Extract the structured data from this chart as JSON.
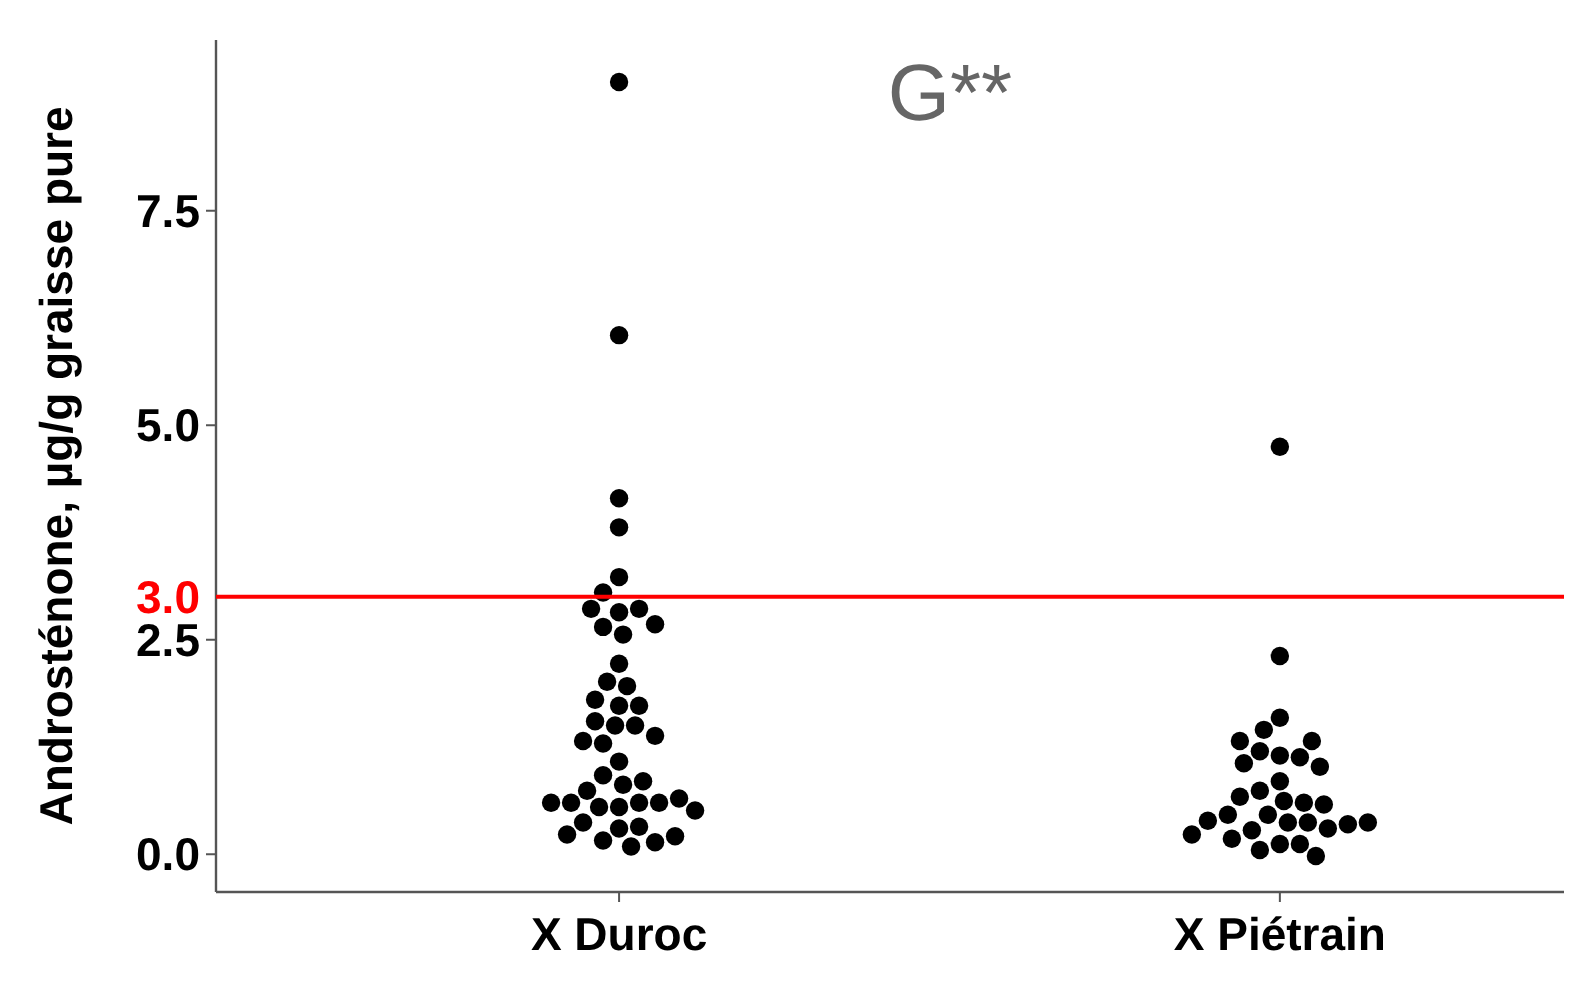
{
  "chart_data": {
    "type": "scatter",
    "ylabel": "Androsténone, µg/g graisse pure",
    "annotations": [
      "G**"
    ],
    "categories": [
      "X Duroc",
      "X Piétrain"
    ],
    "ylim": [
      -0.44,
      9.49
    ],
    "yticks": [
      {
        "value": 0,
        "label": "0.0"
      },
      {
        "value": 2.5,
        "label": "2.5"
      },
      {
        "value": 5,
        "label": "5.0"
      },
      {
        "value": 7.5,
        "label": "7.5"
      }
    ],
    "grid": false,
    "marker": "circle",
    "ref_lines": [
      {
        "axis": "y",
        "value": 3,
        "label": "3.0",
        "color": "#ff0000"
      }
    ],
    "series": [
      {
        "color": "#000000",
        "x": [
          "X Duroc",
          "X Duroc",
          "X Duroc",
          "X Duroc",
          "X Duroc",
          "X Duroc",
          "X Duroc",
          "X Duroc",
          "X Duroc",
          "X Duroc",
          "X Duroc",
          "X Duroc",
          "X Duroc",
          "X Duroc",
          "X Duroc",
          "X Duroc",
          "X Duroc",
          "X Duroc",
          "X Duroc",
          "X Duroc",
          "X Duroc",
          "X Duroc",
          "X Duroc",
          "X Duroc",
          "X Duroc",
          "X Duroc",
          "X Duroc",
          "X Duroc",
          "X Duroc",
          "X Duroc",
          "X Duroc",
          "X Duroc",
          "X Duroc",
          "X Duroc",
          "X Duroc",
          "X Duroc",
          "X Duroc",
          "X Duroc",
          "X Duroc",
          "X Duroc",
          "X Duroc",
          "X Duroc",
          "X Duroc",
          "X Duroc",
          "X Duroc",
          "X Piétrain",
          "X Piétrain",
          "X Piétrain",
          "X Piétrain",
          "X Piétrain",
          "X Piétrain",
          "X Piétrain",
          "X Piétrain",
          "X Piétrain",
          "X Piétrain",
          "X Piétrain",
          "X Piétrain",
          "X Piétrain",
          "X Piétrain",
          "X Piétrain",
          "X Piétrain",
          "X Piétrain",
          "X Piétrain",
          "X Piétrain",
          "X Piétrain",
          "X Piétrain",
          "X Piétrain",
          "X Piétrain",
          "X Piétrain",
          "X Piétrain",
          "X Piétrain",
          "X Piétrain",
          "X Piétrain",
          "X Piétrain",
          "X Piétrain",
          "X Piétrain",
          "X Piétrain"
        ],
        "values": [
          9.0,
          6.05,
          4.15,
          3.81,
          3.23,
          3.05,
          2.82,
          2.86,
          2.86,
          2.68,
          2.65,
          2.56,
          2.22,
          2.01,
          1.96,
          1.8,
          1.73,
          1.73,
          1.5,
          1.5,
          1.55,
          1.38,
          1.29,
          1.32,
          1.08,
          0.92,
          0.81,
          0.85,
          0.74,
          0.55,
          0.55,
          0.6,
          0.6,
          0.6,
          0.65,
          0.6,
          0.51,
          0.3,
          0.32,
          0.37,
          0.16,
          0.14,
          0.09,
          0.23,
          0.21,
          4.75,
          2.31,
          1.59,
          1.45,
          1.15,
          1.2,
          1.13,
          1.06,
          1.32,
          1.32,
          1.02,
          0.85,
          0.74,
          0.62,
          0.46,
          0.6,
          0.67,
          0.58,
          0.37,
          0.37,
          0.28,
          0.12,
          0.46,
          0.3,
          0.35,
          0.39,
          0.37,
          0.18,
          0.23,
          0.12,
          0.05,
          -0.02
        ]
      }
    ]
  }
}
